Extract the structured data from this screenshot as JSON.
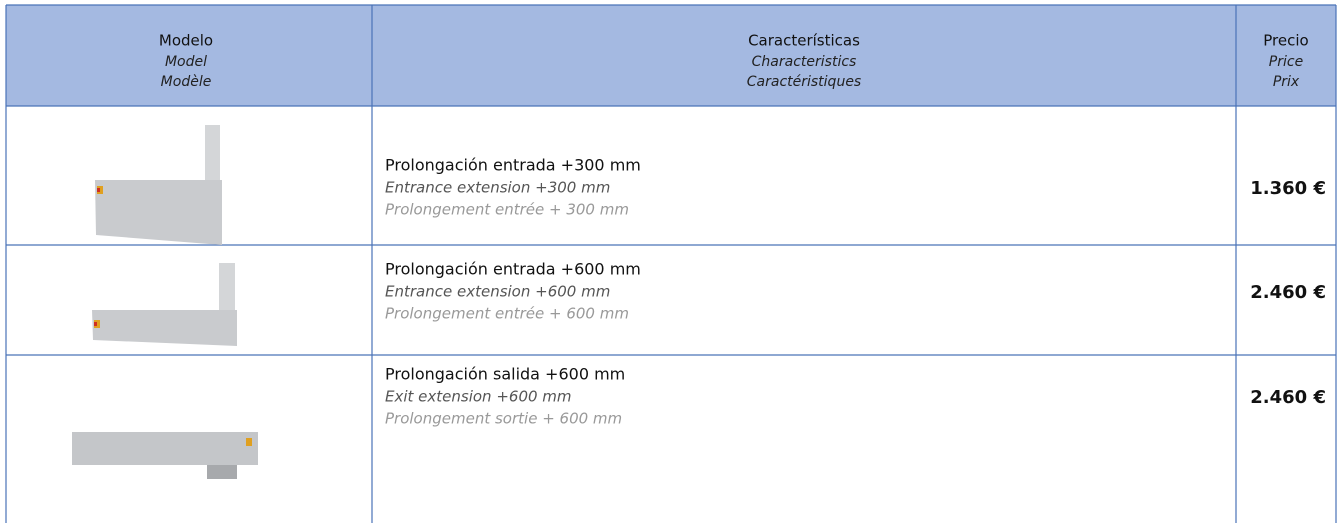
{
  "table": {
    "header": [
      {
        "es": "Modelo",
        "en": "Model",
        "fr": "Modèle"
      },
      {
        "es": "Características",
        "en": "Characteristics",
        "fr": "Caractéristiques"
      },
      {
        "es": "Precio",
        "en": "Price",
        "fr": "Prix"
      }
    ],
    "rows": [
      {
        "es": "Prolongación entrada +300 mm",
        "en": "Entrance extension +300 mm",
        "fr": "Prolongement entrée + 300 mm",
        "price": "1.360 €"
      },
      {
        "es": "Prolongación entrada +600 mm",
        "en": "Entrance extension +600 mm",
        "fr": "Prolongement entrée + 600 mm",
        "price": "2.460 €"
      },
      {
        "es": "Prolongación salida +600 mm",
        "en": "Exit extension +600 mm",
        "fr": "Prolongement sortie + 600 mm",
        "price": "2.460 €"
      }
    ]
  }
}
